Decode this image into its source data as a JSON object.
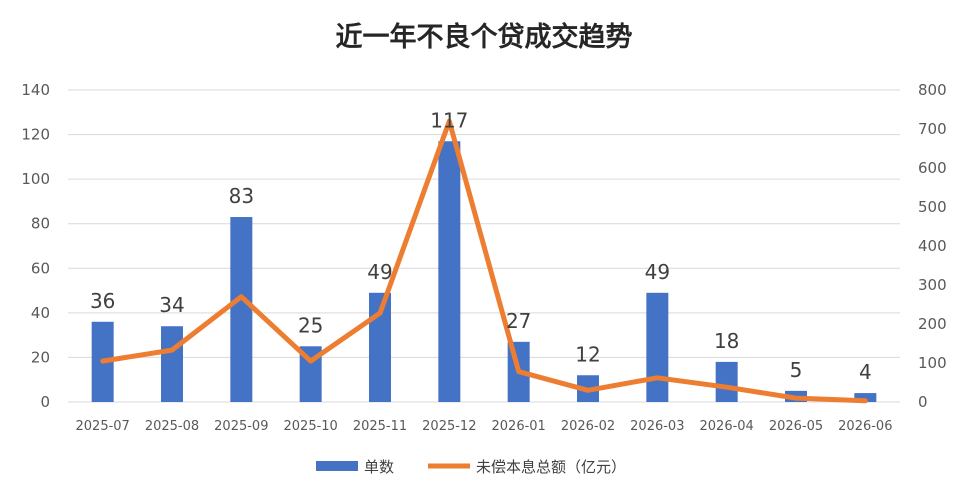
{
  "chart_data": {
    "type": "bar+line",
    "title": "近一年不良个贷成交趋势",
    "categories": [
      "2025-07",
      "2025-08",
      "2025-09",
      "2025-10",
      "2025-11",
      "2025-12",
      "2026-01",
      "2026-02",
      "2026-03",
      "2026-04",
      "2026-05",
      "2026-06"
    ],
    "series": [
      {
        "name": "单数",
        "type": "bar",
        "axis": "left",
        "color": "#4472C4",
        "values": [
          36,
          34,
          83,
          25,
          49,
          117,
          27,
          12,
          49,
          18,
          5,
          4
        ],
        "data_labels": [
          "36",
          "34",
          "83",
          "25",
          "49",
          "117",
          "27",
          "12",
          "49",
          "18",
          "5",
          "4"
        ]
      },
      {
        "name": "未偿本息总额（亿元）",
        "type": "line",
        "axis": "right",
        "color": "#ED7D31",
        "values": [
          105,
          133,
          270,
          105,
          228,
          720,
          78,
          30,
          62,
          38,
          10,
          3
        ]
      }
    ],
    "y_left": {
      "min": 0,
      "max": 140,
      "ticks": [
        "0",
        "20",
        "40",
        "60",
        "80",
        "100",
        "120",
        "140"
      ]
    },
    "y_right": {
      "min": 0,
      "max": 800,
      "ticks": [
        "0",
        "100",
        "200",
        "300",
        "400",
        "500",
        "600",
        "700",
        "800"
      ]
    },
    "grid": true,
    "legend": "bottom"
  }
}
